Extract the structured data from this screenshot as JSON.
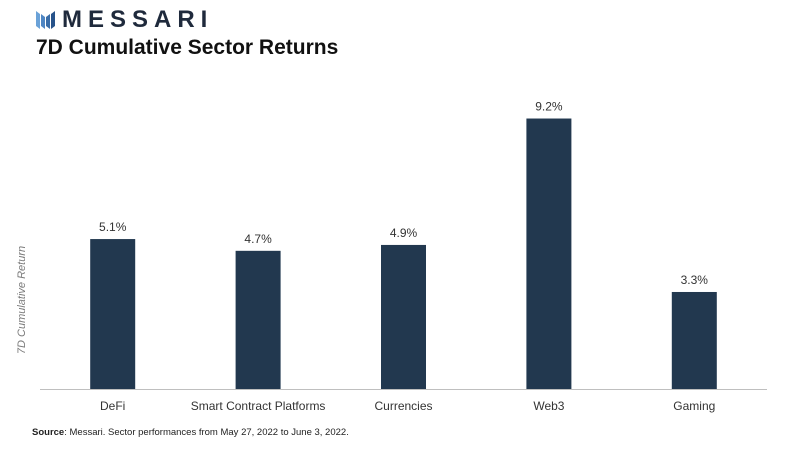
{
  "brand": {
    "name": "MESSARI",
    "logo_icon": "messari-logo-icon"
  },
  "header": {
    "title": "7D Cumulative Sector Returns"
  },
  "source": {
    "label": "Source",
    "text": ": Messari. Sector performances from May 27, 2022 to June 3, 2022."
  },
  "chart_data": {
    "type": "bar",
    "title": "7D Cumulative Sector Returns",
    "xlabel": "",
    "ylabel": "7D Cumulative Return",
    "categories": [
      "DeFi",
      "Smart Contract Platforms",
      "Currencies",
      "Web3",
      "Gaming"
    ],
    "values": [
      5.1,
      4.7,
      4.9,
      9.2,
      3.3
    ],
    "data_labels": [
      "5.1%",
      "4.7%",
      "4.9%",
      "9.2%",
      "3.3%"
    ],
    "ylim": [
      0,
      10
    ],
    "grid": false,
    "bar_color": "#22384f"
  }
}
